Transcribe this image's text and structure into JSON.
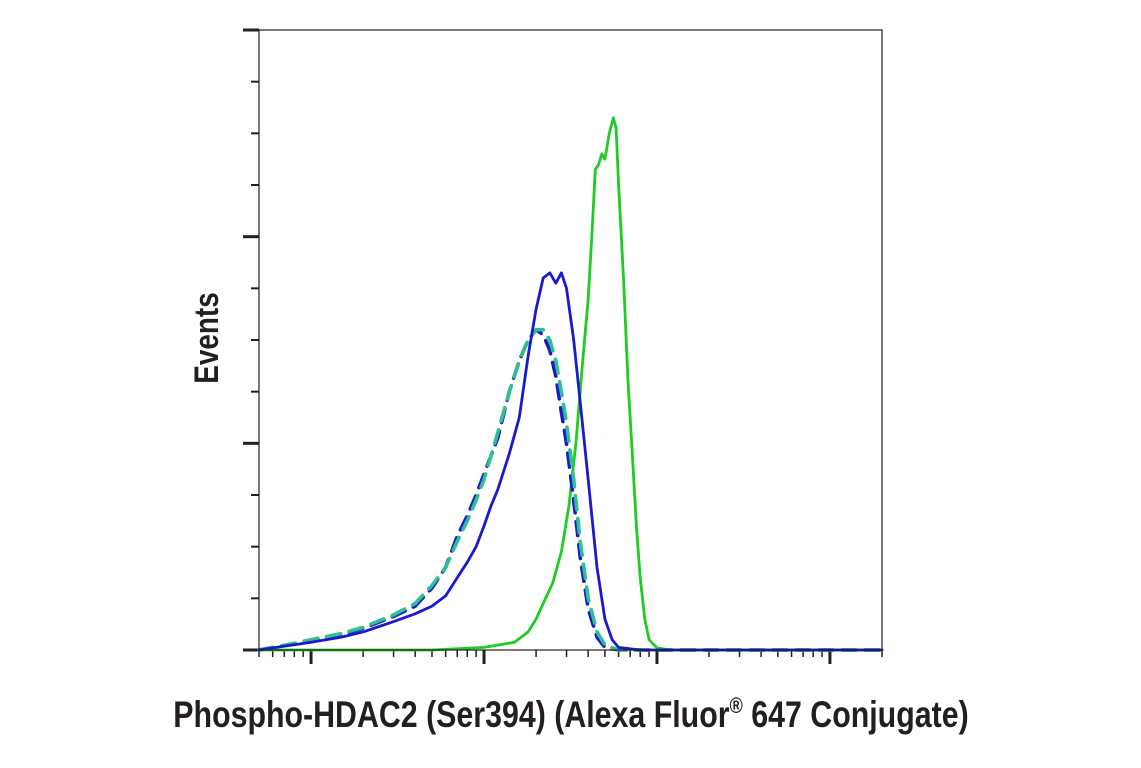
{
  "chart_data": {
    "type": "line",
    "title": "",
    "xlabel": "Phospho-HDAC2 (Ser394) (Alexa Fluor",
    "xlabel_superscript": "®",
    "xlabel_suffix": " 647 Conjugate)",
    "ylabel": "Events",
    "x_scale": "log",
    "xlim": [
      500,
      2000000
    ],
    "ylim": [
      0,
      1.2
    ],
    "y_tick_values": [
      0,
      0.4,
      0.8,
      1.2
    ],
    "x_decades": [
      1000,
      10000,
      100000,
      1000000
    ],
    "grid": false,
    "legend": "none",
    "series": [
      {
        "color": "#1a1acc",
        "dash": "solid",
        "points": [
          [
            500,
            0
          ],
          [
            600,
            0.004
          ],
          [
            800,
            0.01
          ],
          [
            1000,
            0.015
          ],
          [
            1500,
            0.025
          ],
          [
            2000,
            0.035
          ],
          [
            3000,
            0.055
          ],
          [
            4000,
            0.07
          ],
          [
            5000,
            0.085
          ],
          [
            6000,
            0.105
          ],
          [
            7000,
            0.14
          ],
          [
            8000,
            0.17
          ],
          [
            9000,
            0.2
          ],
          [
            10000,
            0.24
          ],
          [
            11000,
            0.28
          ],
          [
            12000,
            0.31
          ],
          [
            14000,
            0.38
          ],
          [
            16000,
            0.45
          ],
          [
            18000,
            0.57
          ],
          [
            20000,
            0.66
          ],
          [
            22000,
            0.72
          ],
          [
            24000,
            0.73
          ],
          [
            26000,
            0.71
          ],
          [
            28000,
            0.73
          ],
          [
            30000,
            0.7
          ],
          [
            33000,
            0.6
          ],
          [
            36000,
            0.48
          ],
          [
            40000,
            0.33
          ],
          [
            45000,
            0.16
          ],
          [
            50000,
            0.06
          ],
          [
            55000,
            0.02
          ],
          [
            60000,
            0.005
          ],
          [
            80000,
            0
          ],
          [
            2000000,
            0
          ]
        ]
      },
      {
        "color": "#1a1acc",
        "dash": "dashed",
        "points": [
          [
            500,
            0
          ],
          [
            600,
            0.005
          ],
          [
            800,
            0.012
          ],
          [
            1000,
            0.018
          ],
          [
            1500,
            0.03
          ],
          [
            2000,
            0.042
          ],
          [
            3000,
            0.065
          ],
          [
            4000,
            0.085
          ],
          [
            5000,
            0.12
          ],
          [
            6000,
            0.16
          ],
          [
            7000,
            0.22
          ],
          [
            8000,
            0.26
          ],
          [
            9000,
            0.3
          ],
          [
            10000,
            0.34
          ],
          [
            12000,
            0.41
          ],
          [
            14000,
            0.5
          ],
          [
            16000,
            0.56
          ],
          [
            18000,
            0.6
          ],
          [
            20000,
            0.62
          ],
          [
            22000,
            0.61
          ],
          [
            24000,
            0.58
          ],
          [
            26000,
            0.53
          ],
          [
            28000,
            0.46
          ],
          [
            30000,
            0.4
          ],
          [
            33000,
            0.29
          ],
          [
            36000,
            0.18
          ],
          [
            40000,
            0.08
          ],
          [
            45000,
            0.025
          ],
          [
            50000,
            0.005
          ],
          [
            60000,
            0
          ],
          [
            2000000,
            0
          ]
        ]
      },
      {
        "color": "#2fc08f",
        "dash": "dashed",
        "points": [
          [
            500,
            0
          ],
          [
            600,
            0.005
          ],
          [
            800,
            0.013
          ],
          [
            1000,
            0.02
          ],
          [
            1500,
            0.032
          ],
          [
            2000,
            0.044
          ],
          [
            3000,
            0.068
          ],
          [
            4000,
            0.09
          ],
          [
            5000,
            0.125
          ],
          [
            6000,
            0.16
          ],
          [
            7000,
            0.21
          ],
          [
            8000,
            0.25
          ],
          [
            9000,
            0.29
          ],
          [
            10000,
            0.33
          ],
          [
            12000,
            0.42
          ],
          [
            14000,
            0.5
          ],
          [
            16000,
            0.56
          ],
          [
            18000,
            0.6
          ],
          [
            20000,
            0.62
          ],
          [
            22000,
            0.62
          ],
          [
            24000,
            0.6
          ],
          [
            26000,
            0.56
          ],
          [
            28000,
            0.5
          ],
          [
            30000,
            0.44
          ],
          [
            33000,
            0.33
          ],
          [
            36000,
            0.21
          ],
          [
            40000,
            0.1
          ],
          [
            45000,
            0.035
          ],
          [
            50000,
            0.01
          ],
          [
            60000,
            0
          ],
          [
            2000000,
            0
          ]
        ]
      },
      {
        "color": "#1fcc24",
        "dash": "solid",
        "points": [
          [
            500,
            0
          ],
          [
            5000,
            0
          ],
          [
            10000,
            0.005
          ],
          [
            15000,
            0.015
          ],
          [
            18000,
            0.035
          ],
          [
            20000,
            0.06
          ],
          [
            22000,
            0.09
          ],
          [
            25000,
            0.13
          ],
          [
            28000,
            0.19
          ],
          [
            31000,
            0.28
          ],
          [
            34000,
            0.4
          ],
          [
            37000,
            0.55
          ],
          [
            40000,
            0.68
          ],
          [
            42000,
            0.8
          ],
          [
            44000,
            0.93
          ],
          [
            46000,
            0.94
          ],
          [
            48000,
            0.96
          ],
          [
            50000,
            0.95
          ],
          [
            53000,
            1.0
          ],
          [
            56000,
            1.03
          ],
          [
            58000,
            1.01
          ],
          [
            60000,
            0.9
          ],
          [
            64000,
            0.72
          ],
          [
            68000,
            0.52
          ],
          [
            72000,
            0.38
          ],
          [
            76000,
            0.24
          ],
          [
            80000,
            0.14
          ],
          [
            85000,
            0.06
          ],
          [
            90000,
            0.02
          ],
          [
            100000,
            0.004
          ],
          [
            120000,
            0
          ],
          [
            2000000,
            0
          ]
        ]
      }
    ]
  }
}
